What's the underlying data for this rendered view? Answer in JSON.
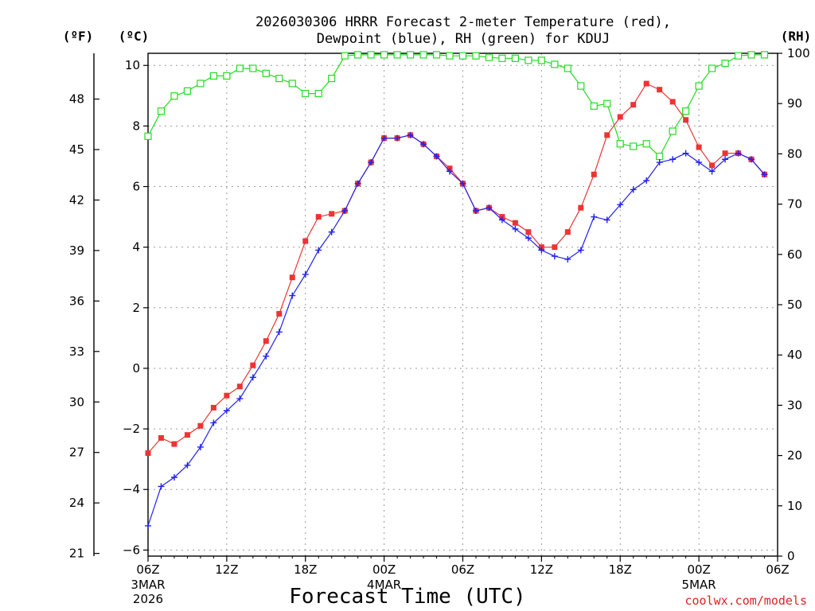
{
  "chart_data": {
    "type": "line",
    "title_line1": "2026030306 HRRR Forecast 2-meter Temperature (red),",
    "title_line2": "Dewpoint (blue), RH (green) for KDUJ",
    "xlabel": "Forecast Time (UTC)",
    "credit": "coolwx.com/models",
    "unit_f": "(ºF)",
    "unit_c": "(ºC)",
    "unit_rh": "(RH)",
    "c_ticks": [
      "10",
      "8",
      "6",
      "4",
      "2",
      "0",
      "−2",
      "−4",
      "−6"
    ],
    "f_ticks": [
      "48",
      "45",
      "42",
      "39",
      "36",
      "33",
      "30",
      "27",
      "24",
      "21"
    ],
    "rh_ticks": [
      "100",
      "90",
      "80",
      "70",
      "60",
      "50",
      "40",
      "30",
      "20",
      "10",
      "0"
    ],
    "x_ticks": [
      "06Z",
      "12Z",
      "18Z",
      "00Z",
      "06Z",
      "12Z",
      "18Z",
      "00Z",
      "06Z"
    ],
    "x_date_labels": [
      {
        "at_hour": 0,
        "line1": "3MAR",
        "line2": "2026"
      },
      {
        "at_hour": 18,
        "line1": "4MAR",
        "line2": ""
      },
      {
        "at_hour": 42,
        "line1": "5MAR",
        "line2": ""
      }
    ],
    "x_range_hours": [
      0,
      48
    ],
    "c_range": [
      -6.2,
      10.4
    ],
    "f_range": [
      20.84,
      50.72
    ],
    "rh_range": [
      0,
      100
    ],
    "series": [
      {
        "name": "Temperature (red)",
        "color": "#ee3333",
        "marker": "filled-square",
        "axis": "celsius",
        "values": [
          -2.8,
          -2.3,
          -2.5,
          -2.2,
          -1.9,
          -1.3,
          -0.9,
          -0.6,
          0.1,
          0.9,
          1.8,
          3.0,
          4.2,
          5.0,
          5.1,
          5.2,
          6.1,
          6.8,
          7.6,
          7.6,
          7.7,
          7.4,
          7.0,
          6.6,
          6.1,
          5.2,
          5.3,
          5.0,
          4.8,
          4.5,
          4.0,
          4.0,
          4.5,
          5.3,
          6.4,
          7.7,
          8.3,
          8.7,
          9.4,
          9.2,
          8.8,
          8.2,
          7.3,
          6.7,
          7.1,
          7.1,
          6.9,
          6.4
        ]
      },
      {
        "name": "Dewpoint (blue)",
        "color": "#2222ee",
        "marker": "plus",
        "axis": "celsius",
        "values": [
          -5.2,
          -3.9,
          -3.6,
          -3.2,
          -2.6,
          -1.8,
          -1.4,
          -1.0,
          -0.3,
          0.4,
          1.2,
          2.4,
          3.1,
          3.9,
          4.5,
          5.2,
          6.1,
          6.8,
          7.6,
          7.6,
          7.7,
          7.4,
          7.0,
          6.5,
          6.1,
          5.2,
          5.3,
          4.9,
          4.6,
          4.3,
          3.9,
          3.7,
          3.6,
          3.9,
          5.0,
          4.9,
          5.4,
          5.9,
          6.2,
          6.8,
          6.9,
          7.1,
          6.8,
          6.5,
          6.9,
          7.1,
          6.9,
          6.4
        ]
      },
      {
        "name": "RH (green)",
        "color": "#22dd22",
        "marker": "open-square",
        "axis": "rh",
        "values": [
          83.5,
          88.5,
          91.5,
          92.5,
          94,
          95.5,
          95.5,
          97,
          97,
          96,
          95,
          94,
          92,
          92,
          95,
          99.5,
          99.7,
          99.7,
          99.7,
          99.7,
          99.7,
          99.7,
          99.7,
          99.5,
          99.5,
          99.5,
          99.2,
          99,
          99,
          98.6,
          98.6,
          97.8,
          97,
          93.5,
          89.5,
          90,
          82,
          81.5,
          82,
          79.5,
          84.5,
          88.5,
          93.5,
          97,
          98,
          99.5,
          99.7,
          99.7
        ]
      }
    ]
  }
}
